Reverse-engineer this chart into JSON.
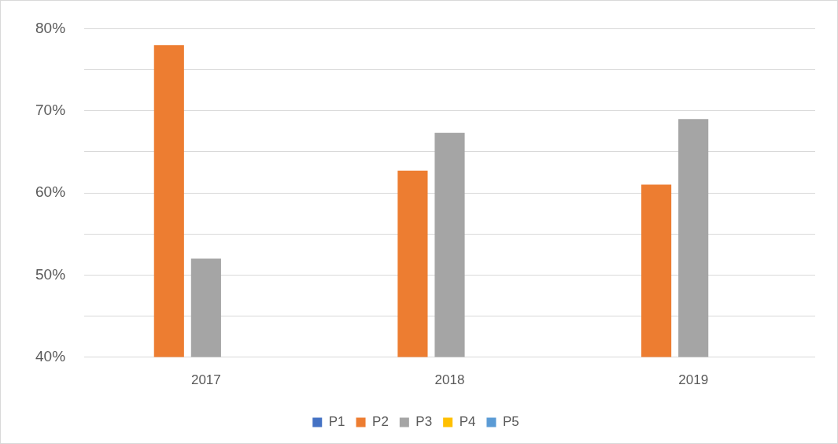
{
  "chart_data": {
    "type": "bar",
    "categories": [
      "2017",
      "2018",
      "2019"
    ],
    "series": [
      {
        "name": "P1",
        "color": "#4472c4",
        "values": [
          null,
          null,
          null
        ]
      },
      {
        "name": "P2",
        "color": "#ed7d31",
        "values": [
          78,
          62.7,
          61
        ]
      },
      {
        "name": "P3",
        "color": "#a5a5a5",
        "values": [
          52,
          67.3,
          69
        ]
      },
      {
        "name": "P4",
        "color": "#ffc000",
        "values": [
          null,
          null,
          null
        ]
      },
      {
        "name": "P5",
        "color": "#5b9bd5",
        "values": [
          null,
          null,
          null
        ]
      }
    ],
    "ylim": [
      40,
      80
    ],
    "yticks": [
      {
        "value": 40,
        "label": "40%"
      },
      {
        "value": 45,
        "label": null
      },
      {
        "value": 50,
        "label": "50%"
      },
      {
        "value": 55,
        "label": null
      },
      {
        "value": 60,
        "label": "60%"
      },
      {
        "value": 65,
        "label": null
      },
      {
        "value": 70,
        "label": "70%"
      },
      {
        "value": 75,
        "label": null
      },
      {
        "value": 80,
        "label": "80%"
      }
    ],
    "grid": "y",
    "legend": "bottom"
  }
}
